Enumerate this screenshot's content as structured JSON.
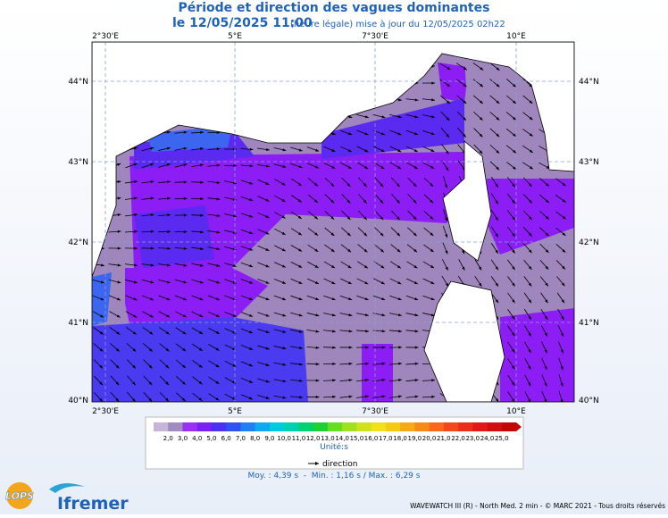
{
  "header": {
    "title": "Période et direction des vagues dominantes",
    "date": "le 12/05/2025 11:00",
    "subtitle": "(heure légale) mise à jour du 12/05/2025 02h22"
  },
  "map": {
    "lon_labels": [
      "2°30'E",
      "5°E",
      "7°30'E",
      "10°E"
    ],
    "lat_labels": [
      "44°N",
      "43°N",
      "42°N",
      "41°N",
      "40°N"
    ]
  },
  "legend": {
    "labels": [
      "2,0",
      "3,0",
      "4,0",
      "5,0",
      "6,0",
      "7,0",
      "8,0",
      "9,0",
      "10,0",
      "11,0",
      "12,0",
      "13,0",
      "14,0",
      "15,0",
      "16,0",
      "17,0",
      "18,0",
      "19,0",
      "20,0",
      "21,0",
      "22,0",
      "23,0",
      "24,0",
      "25,0"
    ],
    "colors": [
      "#c8b4d8",
      "#a08cc0",
      "#9b30f0",
      "#7a20f0",
      "#4a30f0",
      "#3050f0",
      "#2080f0",
      "#10a8f0",
      "#00c8e0",
      "#00d0b0",
      "#00d070",
      "#20d030",
      "#60e020",
      "#a0e020",
      "#d0e020",
      "#f0e020",
      "#f8c818",
      "#f8a818",
      "#f88818",
      "#f86818",
      "#f04818",
      "#e83018",
      "#e01818",
      "#d01010",
      "#c00808"
    ],
    "unit": "Unité:s",
    "direction": "direction"
  },
  "stats": "Moy. : 4,39 s  -  Min. : 1,16 s / Max. : 6,29 s",
  "footer": "WAVEWATCH III (R) - North Med. 2 min - © MARC 2021 - Tous droits réservés",
  "logos": [
    "LOPS",
    "Ifremer"
  ]
}
